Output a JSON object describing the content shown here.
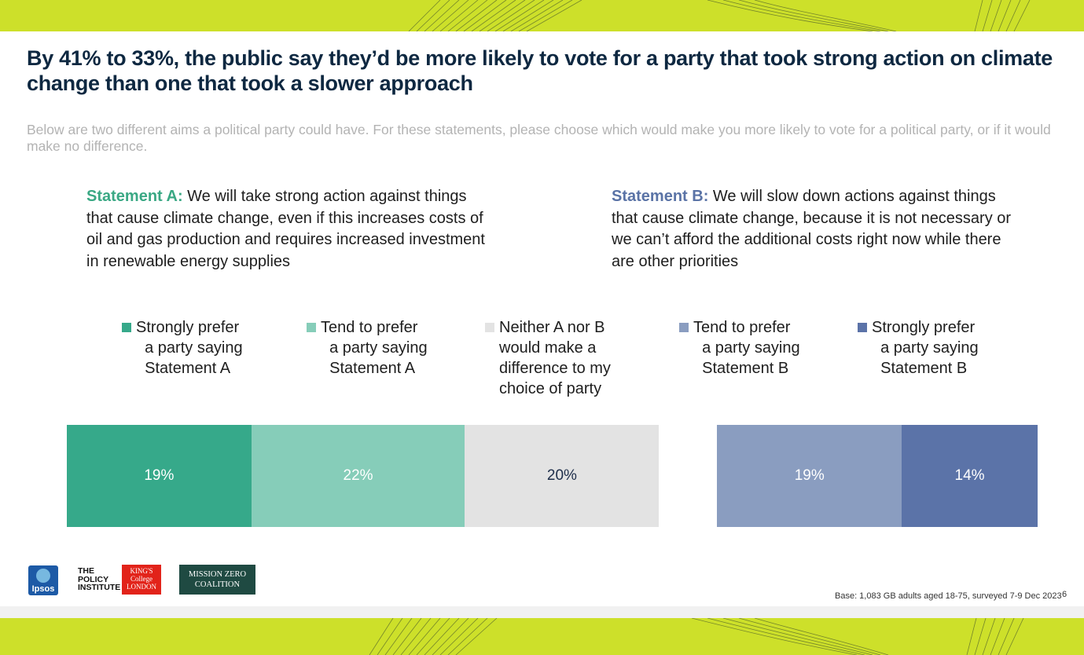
{
  "title": "By 41% to 33%, the public say they’d be more likely to vote for a party that took strong action on climate change than one that took a slower approach",
  "subtitle": "Below are two different aims a political party could have. For these statements, please choose which would make you more likely to vote for a political party, or if it would make no difference.",
  "statement_a": {
    "label": "Statement A:",
    "text": " We will take strong action against things that cause climate change, even if this increases costs of oil and gas production and requires increased investment in renewable energy supplies"
  },
  "statement_b": {
    "label": "Statement B:",
    "text": " We will slow down actions against things that cause climate change, because it is not necessary or we can’t afford the additional costs right now while there are other priorities"
  },
  "chart_data": {
    "type": "bar",
    "orientation": "horizontal-stacked",
    "categories": [
      "Strongly prefer a party saying Statement A",
      "Tend to prefer a party saying Statement A",
      "Neither A nor B would make a difference to my choice of party",
      "Tend to prefer a party saying Statement B",
      "Strongly prefer a party saying Statement B"
    ],
    "legend_text": [
      "Strongly prefer\n  a party saying\n  Statement A",
      "Tend to prefer\n  a party saying\n  Statement A",
      "Neither A nor B\nwould make a\ndifference to my\nchoice of party",
      "Tend to prefer\n  a party saying\n  Statement B",
      "Strongly prefer\n  a party saying\n  Statement B"
    ],
    "values": [
      19,
      22,
      20,
      19,
      14
    ],
    "labels": [
      "19%",
      "22%",
      "20%",
      "19%",
      "14%"
    ],
    "colors": [
      "#36a98a",
      "#86cdb9",
      "#e3e3e3",
      "#8a9dc0",
      "#5b73a8"
    ],
    "label_colors": [
      "#ffffff",
      "#ffffff",
      "#1e2e4a",
      "#ffffff",
      "#ffffff"
    ],
    "legend_placement": "top"
  },
  "footer": {
    "base_note": "Base: 1,083 GB adults aged 18-75, surveyed 7-9 Dec 2023",
    "page_number": "6",
    "logos": {
      "ipsos": "Ipsos",
      "policy_institute": "THE POLICY INSTITUTE",
      "kings_college": "KING'S College LONDON",
      "mission_zero": "MISSION ZERO COALITION"
    }
  },
  "brand_colors": {
    "band": "#cde02a",
    "title": "#0e2841"
  }
}
